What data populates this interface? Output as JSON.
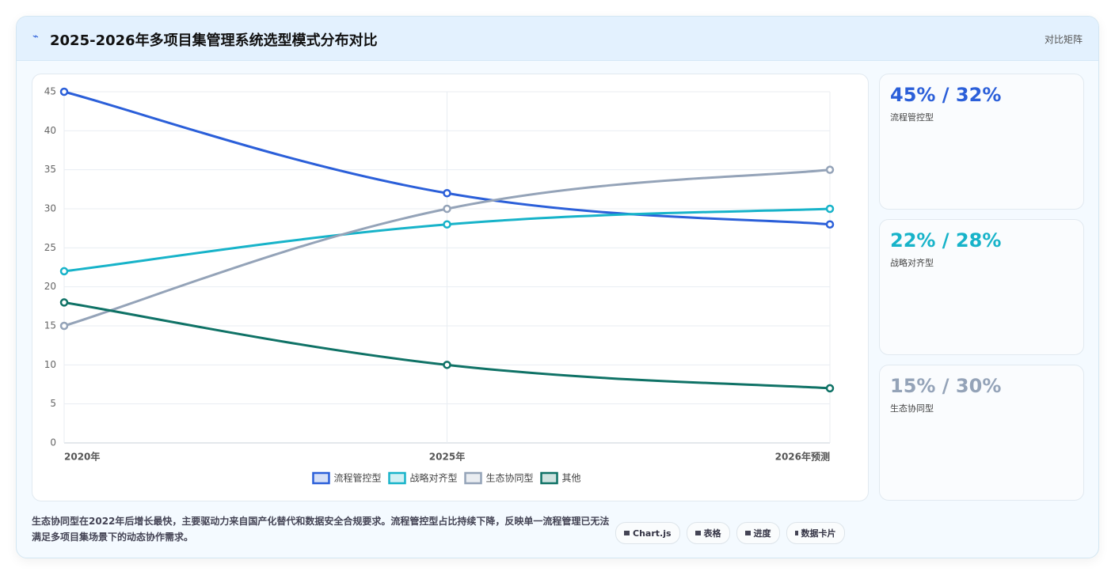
{
  "header": {
    "title": "2025-2026年多项目集管理系统选型模式分布对比",
    "action": "对比矩阵"
  },
  "chart_data": {
    "type": "line",
    "categories": [
      "2020年",
      "2025年",
      "2026年预测"
    ],
    "series": [
      {
        "name": "流程管控型",
        "color": "#2b5fd9",
        "values": [
          45,
          32,
          28
        ]
      },
      {
        "name": "战略对齐型",
        "color": "#17b3c9",
        "values": [
          22,
          28,
          30
        ]
      },
      {
        "name": "生态协同型",
        "color": "#94a3b8",
        "values": [
          15,
          30,
          35
        ]
      },
      {
        "name": "其他",
        "color": "#0f7266",
        "values": [
          18,
          10,
          7
        ]
      }
    ],
    "ylim": [
      0,
      45
    ],
    "yticks": [
      0,
      5,
      10,
      15,
      20,
      25,
      30,
      35,
      40,
      45
    ],
    "grid": true,
    "legend": "bottom"
  },
  "cards": [
    {
      "value": "45% / 32%",
      "label": "流程管控型"
    },
    {
      "value": "22% / 28%",
      "label": "战略对齐型"
    },
    {
      "value": "15% / 30%",
      "label": "生态协同型"
    }
  ],
  "footer": {
    "note": "生态协同型在2022年后增长最快，主要驱动力来自国产化替代和数据安全合规要求。流程管控型占比持续下降，反映单一流程管理已无法满足多项目集场景下的动态协作需求。",
    "buttons": [
      "Chart.js",
      "表格",
      "进度",
      "数据卡片"
    ]
  }
}
